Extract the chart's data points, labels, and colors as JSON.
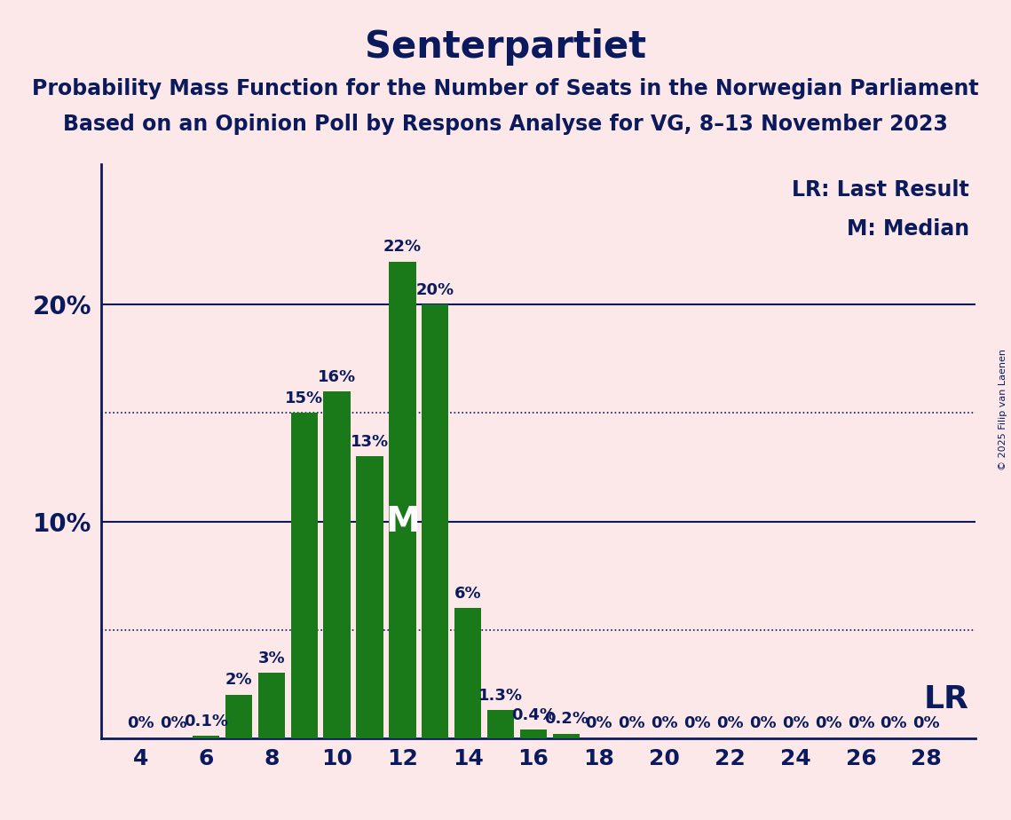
{
  "title": "Senterpartiet",
  "subtitle1": "Probability Mass Function for the Number of Seats in the Norwegian Parliament",
  "subtitle2": "Based on an Opinion Poll by Respons Analyse for VG, 8–13 November 2023",
  "copyright": "© 2025 Filip van Laenen",
  "seats": [
    4,
    5,
    6,
    7,
    8,
    9,
    10,
    11,
    12,
    13,
    14,
    15,
    16,
    17,
    18,
    19,
    20,
    21,
    22,
    23,
    24,
    25,
    26,
    27,
    28
  ],
  "probabilities": [
    0.0,
    0.0,
    0.001,
    0.02,
    0.03,
    0.15,
    0.16,
    0.13,
    0.22,
    0.2,
    0.06,
    0.013,
    0.004,
    0.002,
    0.0,
    0.0,
    0.0,
    0.0,
    0.0,
    0.0,
    0.0,
    0.0,
    0.0,
    0.0,
    0.0
  ],
  "bar_labels": [
    "0%",
    "0%",
    "0.1%",
    "2%",
    "3%",
    "15%",
    "16%",
    "13%",
    "22%",
    "20%",
    "6%",
    "1.3%",
    "0.4%",
    "0.2%",
    "0%",
    "0%",
    "0%",
    "0%",
    "0%",
    "0%",
    "0%",
    "0%",
    "0%",
    "0%",
    "0%"
  ],
  "median_seat": 12,
  "last_result_seat": 28,
  "bar_color": "#1a7a1a",
  "bg_color": "#fce8e8",
  "text_color": "#0a1a5c",
  "title_fontsize": 30,
  "subtitle_fontsize": 17,
  "ytick_fontsize": 20,
  "xtick_fontsize": 18,
  "bar_label_fontsize": 13,
  "legend_fontsize": 17,
  "m_fontsize": 28,
  "lr_fontsize": 26,
  "solid_gridlines": [
    0.1,
    0.2
  ],
  "dotted_gridlines": [
    0.05,
    0.15
  ],
  "ylim": [
    0,
    0.265
  ],
  "xticks": [
    4,
    6,
    8,
    10,
    12,
    14,
    16,
    18,
    20,
    22,
    24,
    26,
    28
  ],
  "yticks": [
    0.1,
    0.2
  ],
  "ytick_labels": [
    "10%",
    "20%"
  ]
}
